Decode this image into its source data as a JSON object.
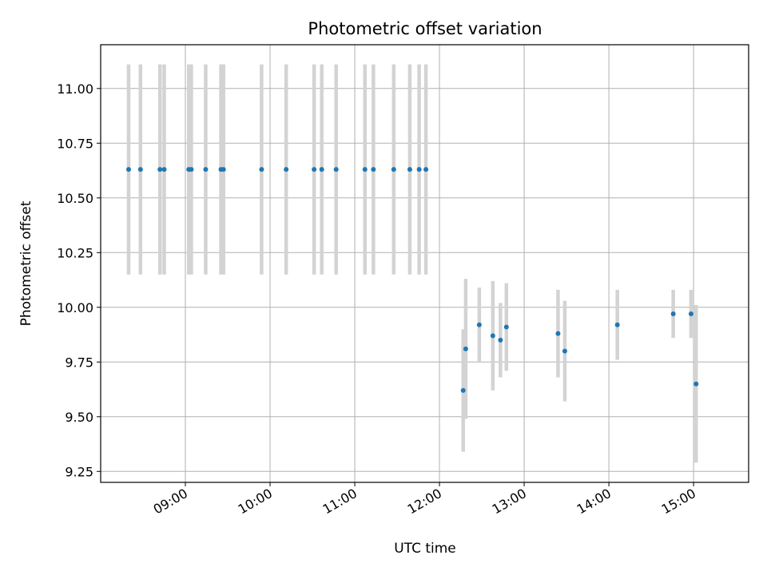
{
  "chart_data": {
    "type": "scatter",
    "title": "Photometric offset variation",
    "xlabel": "UTC time",
    "ylabel": "Photometric offset",
    "x_unit": "hours UTC",
    "xlim": [
      8.0,
      15.65
    ],
    "ylim": [
      9.2,
      11.2
    ],
    "grid": true,
    "xticks": [
      {
        "value": 9,
        "label": "09:00"
      },
      {
        "value": 10,
        "label": "10:00"
      },
      {
        "value": 11,
        "label": "11:00"
      },
      {
        "value": 12,
        "label": "12:00"
      },
      {
        "value": 13,
        "label": "13:00"
      },
      {
        "value": 14,
        "label": "14:00"
      },
      {
        "value": 15,
        "label": "15:00"
      }
    ],
    "yticks": [
      {
        "value": 9.25,
        "label": "9.25"
      },
      {
        "value": 9.5,
        "label": "9.50"
      },
      {
        "value": 9.75,
        "label": "9.75"
      },
      {
        "value": 10.0,
        "label": "10.00"
      },
      {
        "value": 10.25,
        "label": "10.25"
      },
      {
        "value": 10.5,
        "label": "10.50"
      },
      {
        "value": 10.75,
        "label": "10.75"
      },
      {
        "value": 11.0,
        "label": "11.00"
      }
    ],
    "colors": {
      "marker": "#1f77b4",
      "errorbar": "#d3d3d3"
    },
    "series": [
      {
        "name": "Photometric offset",
        "points": [
          {
            "x": 8.33,
            "y": 10.63,
            "err": 0.48
          },
          {
            "x": 8.47,
            "y": 10.63,
            "err": 0.48
          },
          {
            "x": 8.7,
            "y": 10.63,
            "err": 0.48
          },
          {
            "x": 8.75,
            "y": 10.63,
            "err": 0.48
          },
          {
            "x": 9.04,
            "y": 10.63,
            "err": 0.48
          },
          {
            "x": 9.07,
            "y": 10.63,
            "err": 0.48
          },
          {
            "x": 9.24,
            "y": 10.63,
            "err": 0.48
          },
          {
            "x": 9.42,
            "y": 10.63,
            "err": 0.48
          },
          {
            "x": 9.45,
            "y": 10.63,
            "err": 0.48
          },
          {
            "x": 9.9,
            "y": 10.63,
            "err": 0.48
          },
          {
            "x": 10.19,
            "y": 10.63,
            "err": 0.48
          },
          {
            "x": 10.52,
            "y": 10.63,
            "err": 0.48
          },
          {
            "x": 10.61,
            "y": 10.63,
            "err": 0.48
          },
          {
            "x": 10.78,
            "y": 10.63,
            "err": 0.48
          },
          {
            "x": 11.12,
            "y": 10.63,
            "err": 0.48
          },
          {
            "x": 11.22,
            "y": 10.63,
            "err": 0.48
          },
          {
            "x": 11.46,
            "y": 10.63,
            "err": 0.48
          },
          {
            "x": 11.65,
            "y": 10.63,
            "err": 0.48
          },
          {
            "x": 11.76,
            "y": 10.63,
            "err": 0.48
          },
          {
            "x": 11.84,
            "y": 10.63,
            "err": 0.48
          },
          {
            "x": 12.28,
            "y": 9.62,
            "err": 0.28
          },
          {
            "x": 12.31,
            "y": 9.81,
            "err": 0.32
          },
          {
            "x": 12.47,
            "y": 9.92,
            "err": 0.17
          },
          {
            "x": 12.63,
            "y": 9.87,
            "err": 0.25
          },
          {
            "x": 12.72,
            "y": 9.85,
            "err": 0.17
          },
          {
            "x": 12.79,
            "y": 9.91,
            "err": 0.2
          },
          {
            "x": 13.4,
            "y": 9.88,
            "err": 0.2
          },
          {
            "x": 13.48,
            "y": 9.8,
            "err": 0.23
          },
          {
            "x": 14.1,
            "y": 9.92,
            "err": 0.16
          },
          {
            "x": 14.76,
            "y": 9.97,
            "err": 0.11
          },
          {
            "x": 14.97,
            "y": 9.97,
            "err": 0.11
          },
          {
            "x": 15.03,
            "y": 9.65,
            "err": 0.36
          }
        ]
      }
    ]
  }
}
